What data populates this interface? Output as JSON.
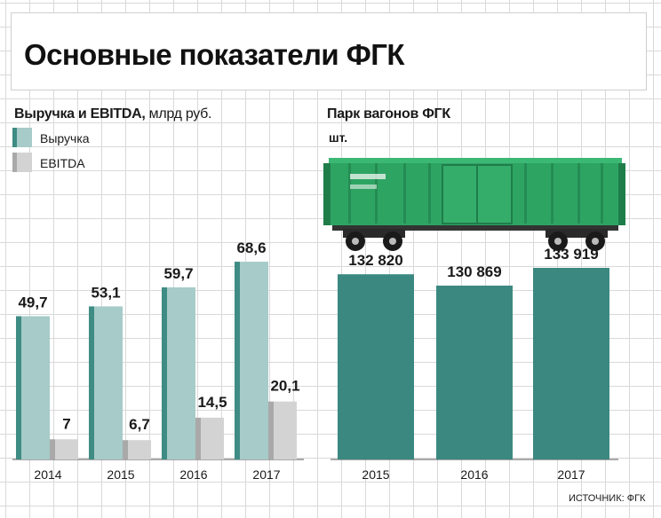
{
  "title": "Основные показатели ФГК",
  "revenue_section": {
    "title": "Выручка и EBITDA,",
    "unit": "млрд руб."
  },
  "fleet_section": {
    "title": "Парк вагонов ФГК",
    "unit": "шт."
  },
  "source": "ИСТОЧНИК: ФГК",
  "colors": {
    "revenue_face": "#a6cbc8",
    "revenue_side": "#3f8c84",
    "ebitda_face": "#d3d3d3",
    "ebitda_side": "#a9a9a9",
    "fleet_bar": "#3b8881",
    "wagon_body": "#2ea463"
  },
  "chart_data": [
    {
      "type": "bar",
      "title": "Выручка и EBITDA, млрд руб.",
      "categories": [
        "2014",
        "2015",
        "2016",
        "2017"
      ],
      "series": [
        {
          "name": "Выручка",
          "values": [
            49.7,
            53.1,
            59.7,
            68.6
          ],
          "labels": [
            "49,7",
            "53,1",
            "59,7",
            "68,6"
          ]
        },
        {
          "name": "EBITDA",
          "values": [
            7,
            6.7,
            14.5,
            20.1
          ],
          "labels": [
            "7",
            "6,7",
            "14,5",
            "20,1"
          ]
        }
      ],
      "legend": "top-left",
      "grid": true
    },
    {
      "type": "bar",
      "title": "Парк вагонов ФГК",
      "ylabel": "шт.",
      "categories": [
        "2015",
        "2016",
        "2017"
      ],
      "values": [
        132820,
        130869,
        133919
      ],
      "labels": [
        "132 820",
        "130 869",
        "133 919"
      ],
      "grid": true
    }
  ]
}
